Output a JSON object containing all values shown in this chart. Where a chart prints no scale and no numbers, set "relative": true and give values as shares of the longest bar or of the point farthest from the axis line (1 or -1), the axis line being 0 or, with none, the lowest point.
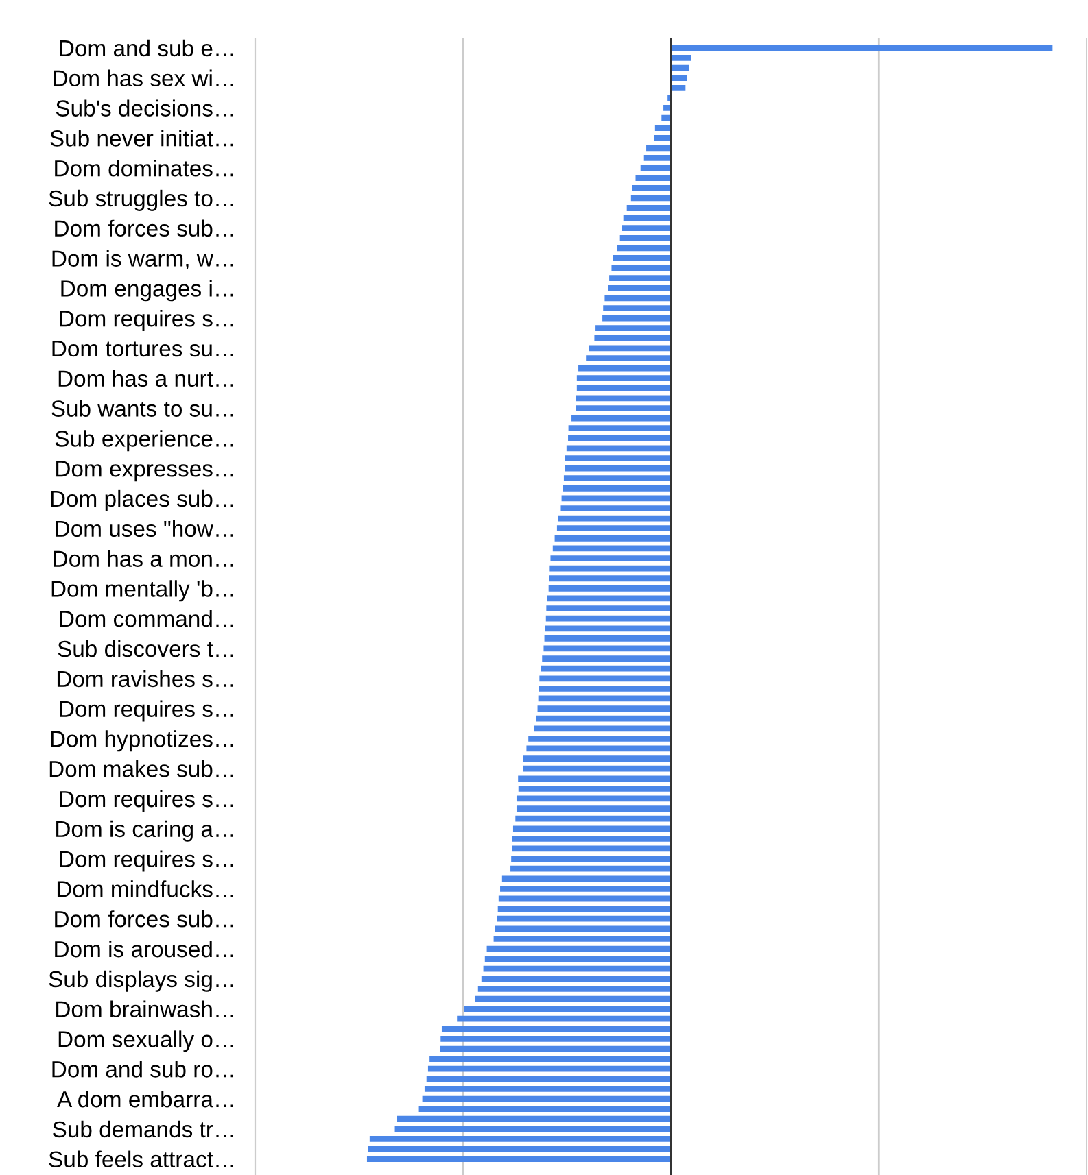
{
  "chart_data": {
    "type": "bar",
    "orientation": "horizontal",
    "relative": true,
    "grid": "x",
    "color": "#4a86e8",
    "categories": [
      "Dom and sub e…",
      null,
      null,
      "Dom has sex wi…",
      null,
      null,
      "Sub's decisions…",
      null,
      null,
      "Sub never initiat…",
      null,
      null,
      "Dom dominates…",
      null,
      null,
      "Sub struggles to…",
      null,
      null,
      "Dom forces sub…",
      null,
      null,
      "Dom is warm, w…",
      null,
      null,
      "Dom engages i…",
      null,
      null,
      "Dom requires s…",
      null,
      null,
      "Dom tortures su…",
      null,
      null,
      "Dom has a nurt…",
      null,
      null,
      "Sub wants to su…",
      null,
      null,
      "Sub experience…",
      null,
      null,
      "Dom expresses…",
      null,
      null,
      "Dom places sub…",
      null,
      null,
      "Dom uses \"how…",
      null,
      null,
      "Dom has a mon…",
      null,
      null,
      "Dom mentally 'b…",
      null,
      null,
      "Dom command…",
      null,
      null,
      "Sub discovers t…",
      null,
      null,
      "Dom ravishes s…",
      null,
      null,
      "Dom requires s…",
      null,
      null,
      "Dom hypnotizes…",
      null,
      null,
      "Dom makes sub…",
      null,
      null,
      "Dom requires s…",
      null,
      null,
      "Dom is caring a…",
      null,
      null,
      "Dom requires s…",
      null,
      null,
      "Dom mindfucks…",
      null,
      null,
      "Dom forces sub…",
      null,
      null,
      "Dom is aroused…",
      null,
      null,
      "Sub displays sig…",
      null,
      null,
      "Dom brainwash…",
      null,
      null,
      "Dom sexually o…",
      null,
      null,
      "Dom and sub ro…",
      null,
      null,
      "A dom embarra…",
      null,
      null,
      "Sub demands tr…",
      null,
      null,
      "Sub feels attract…"
    ],
    "values": [
      1.0,
      0.053,
      0.047,
      0.042,
      0.038,
      -0.009,
      -0.02,
      -0.025,
      -0.042,
      -0.045,
      -0.065,
      -0.071,
      -0.08,
      -0.093,
      -0.102,
      -0.105,
      -0.116,
      -0.125,
      -0.129,
      -0.134,
      -0.142,
      -0.152,
      -0.156,
      -0.162,
      -0.165,
      -0.174,
      -0.178,
      -0.18,
      -0.198,
      -0.201,
      -0.216,
      -0.223,
      -0.243,
      -0.247,
      -0.247,
      -0.25,
      -0.25,
      -0.261,
      -0.269,
      -0.27,
      -0.274,
      -0.278,
      -0.279,
      -0.281,
      -0.283,
      -0.287,
      -0.289,
      -0.296,
      -0.299,
      -0.305,
      -0.31,
      -0.316,
      -0.318,
      -0.319,
      -0.321,
      -0.325,
      -0.327,
      -0.328,
      -0.33,
      -0.332,
      -0.334,
      -0.338,
      -0.341,
      -0.345,
      -0.347,
      -0.348,
      -0.35,
      -0.354,
      -0.359,
      -0.374,
      -0.379,
      -0.387,
      -0.388,
      -0.401,
      -0.4,
      -0.405,
      -0.405,
      -0.408,
      -0.414,
      -0.416,
      -0.417,
      -0.419,
      -0.421,
      -0.443,
      -0.448,
      -0.452,
      -0.454,
      -0.457,
      -0.461,
      -0.465,
      -0.483,
      -0.488,
      -0.492,
      -0.497,
      -0.506,
      -0.514,
      -0.543,
      -0.561,
      -0.601,
      -0.604,
      -0.606,
      -0.633,
      -0.637,
      -0.641,
      -0.646,
      -0.652,
      -0.661,
      -0.719,
      -0.724,
      -0.79,
      -0.794,
      -0.797
    ]
  }
}
